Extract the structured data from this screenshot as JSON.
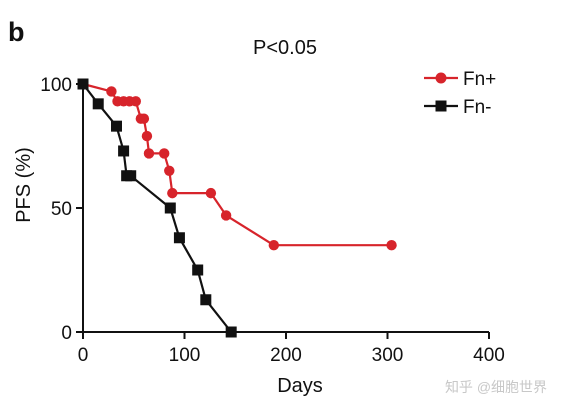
{
  "chart_data": {
    "type": "line",
    "panel_label": "b",
    "annotation": "P<0.05",
    "xlabel": "Days",
    "ylabel": "PFS (%)",
    "xlim": [
      0,
      400
    ],
    "ylim": [
      0,
      100
    ],
    "x_ticks": [
      0,
      100,
      200,
      300,
      400
    ],
    "y_ticks": [
      0,
      50,
      100
    ],
    "x_tick_labels": [
      "0",
      "100",
      "200",
      "300",
      "400"
    ],
    "y_tick_labels": [
      "0",
      "50",
      "100"
    ],
    "legend_position": "top-right",
    "grid": false,
    "series": [
      {
        "name": "Fn+",
        "color": "#d7242b",
        "marker": "circle",
        "points": [
          [
            0,
            100
          ],
          [
            28,
            97
          ],
          [
            34,
            93
          ],
          [
            40,
            93
          ],
          [
            46,
            93
          ],
          [
            52,
            93
          ],
          [
            57,
            86
          ],
          [
            60,
            86
          ],
          [
            63,
            79
          ],
          [
            65,
            72
          ],
          [
            80,
            72
          ],
          [
            85,
            65
          ],
          [
            88,
            56
          ],
          [
            126,
            56
          ],
          [
            141,
            47
          ],
          [
            188,
            35
          ],
          [
            304,
            35
          ]
        ]
      },
      {
        "name": "Fn-",
        "color": "#111111",
        "marker": "square",
        "points": [
          [
            0,
            100
          ],
          [
            15,
            92
          ],
          [
            33,
            83
          ],
          [
            40,
            73
          ],
          [
            43,
            63
          ],
          [
            47,
            63
          ],
          [
            86,
            50
          ],
          [
            95,
            38
          ],
          [
            113,
            25
          ],
          [
            121,
            13
          ],
          [
            146,
            0
          ]
        ]
      }
    ]
  },
  "watermark": "知乎 @细胞世界"
}
